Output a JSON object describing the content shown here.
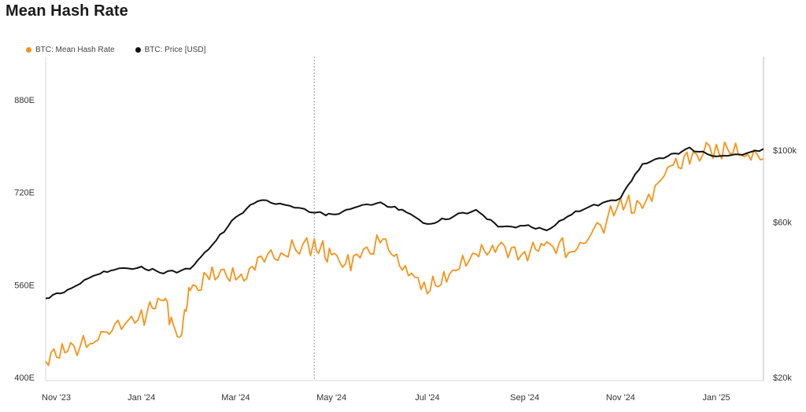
{
  "chart_data": {
    "type": "line",
    "title": "Mean Hash Rate",
    "legend_position": "top-left",
    "grid": false,
    "x_axis": {
      "tick_labels": [
        "Nov '23",
        "Jan '24",
        "Mar '24",
        "May '24",
        "Jul '24",
        "Sep '24",
        "Nov '24",
        "Jan '25"
      ],
      "range": [
        "2023-11-01",
        "2025-01-31"
      ]
    },
    "y_axis_left": {
      "tick_labels": [
        "400E",
        "560E",
        "720E",
        "880E"
      ],
      "ticks": [
        400,
        560,
        720,
        880
      ],
      "range": [
        400,
        940
      ]
    },
    "y_axis_right": {
      "scale": "log",
      "tick_labels": [
        "$20k",
        "$60k",
        "$100k"
      ],
      "ticks": [
        20000,
        60000,
        100000
      ]
    },
    "marker_date": "2024-04-20",
    "series": [
      {
        "name": "BTC: Mean Hash Rate",
        "axis": "left",
        "color": "#F7931A",
        "x": [
          "2023-11-01",
          "2023-11-15",
          "2023-12-01",
          "2023-12-15",
          "2024-01-01",
          "2024-01-15",
          "2024-01-25",
          "2024-02-01",
          "2024-02-15",
          "2024-03-01",
          "2024-03-15",
          "2024-04-01",
          "2024-04-20",
          "2024-05-01",
          "2024-05-15",
          "2024-06-01",
          "2024-06-15",
          "2024-07-01",
          "2024-07-15",
          "2024-08-01",
          "2024-08-15",
          "2024-09-01",
          "2024-09-15",
          "2024-10-01",
          "2024-10-15",
          "2024-11-01",
          "2024-11-15",
          "2024-12-01",
          "2024-12-15",
          "2025-01-01",
          "2025-01-15",
          "2025-01-31"
        ],
        "y": [
          428,
          448,
          460,
          487,
          505,
          535,
          465,
          548,
          582,
          572,
          600,
          615,
          630,
          610,
          595,
          640,
          585,
          550,
          578,
          610,
          625,
          618,
          635,
          620,
          650,
          700,
          690,
          765,
          775,
          795,
          785,
          778
        ]
      },
      {
        "name": "BTC: Price [USD]",
        "axis": "right",
        "color": "#111111",
        "x": [
          "2023-11-01",
          "2023-11-15",
          "2023-12-01",
          "2023-12-15",
          "2024-01-01",
          "2024-01-15",
          "2024-02-01",
          "2024-02-15",
          "2024-03-01",
          "2024-03-15",
          "2024-04-01",
          "2024-04-20",
          "2024-05-01",
          "2024-05-15",
          "2024-06-01",
          "2024-06-15",
          "2024-07-01",
          "2024-07-15",
          "2024-08-01",
          "2024-08-15",
          "2024-09-01",
          "2024-09-15",
          "2024-10-01",
          "2024-10-15",
          "2024-11-01",
          "2024-11-15",
          "2024-12-01",
          "2024-12-15",
          "2025-01-01",
          "2025-01-15",
          "2025-01-31"
        ],
        "y": [
          35000,
          37000,
          41000,
          43000,
          43500,
          42000,
          43000,
          51000,
          62000,
          70000,
          68000,
          64500,
          63000,
          67000,
          68500,
          65500,
          59000,
          62000,
          65500,
          58000,
          58500,
          56500,
          63500,
          67500,
          71500,
          90000,
          96000,
          101000,
          96000,
          97000,
          101000
        ]
      }
    ]
  }
}
